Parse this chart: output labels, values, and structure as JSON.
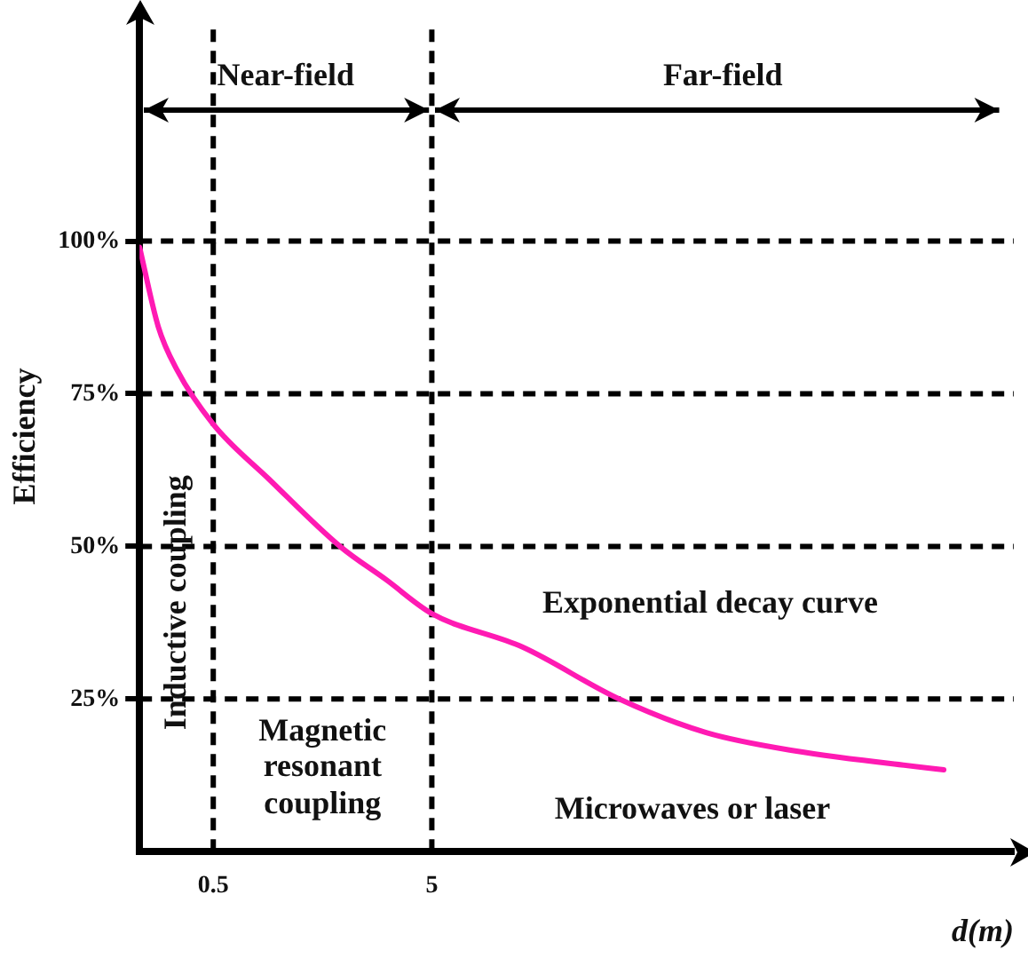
{
  "chart_data": {
    "type": "line",
    "xlabel": "d(m)",
    "ylabel": "Efficiency",
    "log": "x",
    "x": [
      0.23,
      0.28,
      0.34,
      0.5,
      0.9,
      1.9,
      3.1,
      5,
      13,
      36,
      90,
      230,
      1100
    ],
    "series": [
      {
        "color": "#ff1ab3",
        "values": [
          99,
          86,
          79,
          70,
          61,
          50,
          44.5,
          39,
          33.5,
          25,
          19.5,
          16.5,
          13.4
        ]
      }
    ],
    "xlim": [
      0.23,
      2300
    ],
    "xticks": [
      0.5,
      5
    ],
    "ylim": [
      0,
      136
    ],
    "yticks": [
      {
        "value": 25,
        "label": "25%"
      },
      {
        "value": 50,
        "label": "50%"
      },
      {
        "value": 75,
        "label": "75%"
      },
      {
        "value": 100,
        "label": "100%"
      }
    ],
    "grid": false,
    "legend": false,
    "marker": "none",
    "line_style": "solid",
    "ref_lines": [
      {
        "axis": "y",
        "value": 100,
        "color": "#000000",
        "line_style": "dashed"
      },
      {
        "axis": "y",
        "value": 75,
        "color": "#000000",
        "line_style": "dashed"
      },
      {
        "axis": "y",
        "value": 50,
        "color": "#000000",
        "line_style": "dashed"
      },
      {
        "axis": "y",
        "value": 25,
        "color": "#000000",
        "line_style": "dashed"
      },
      {
        "axis": "x",
        "value": 0.5,
        "color": "#000000",
        "line_style": "dashed"
      },
      {
        "axis": "x",
        "value": 5,
        "color": "#000000",
        "line_style": "dashed"
      }
    ],
    "annotations": [
      "Near-field",
      "Far-field",
      "Inductive coupling",
      "Magnetic resonant coupling",
      "Exponential decay curve",
      "Microwaves or laser"
    ]
  }
}
